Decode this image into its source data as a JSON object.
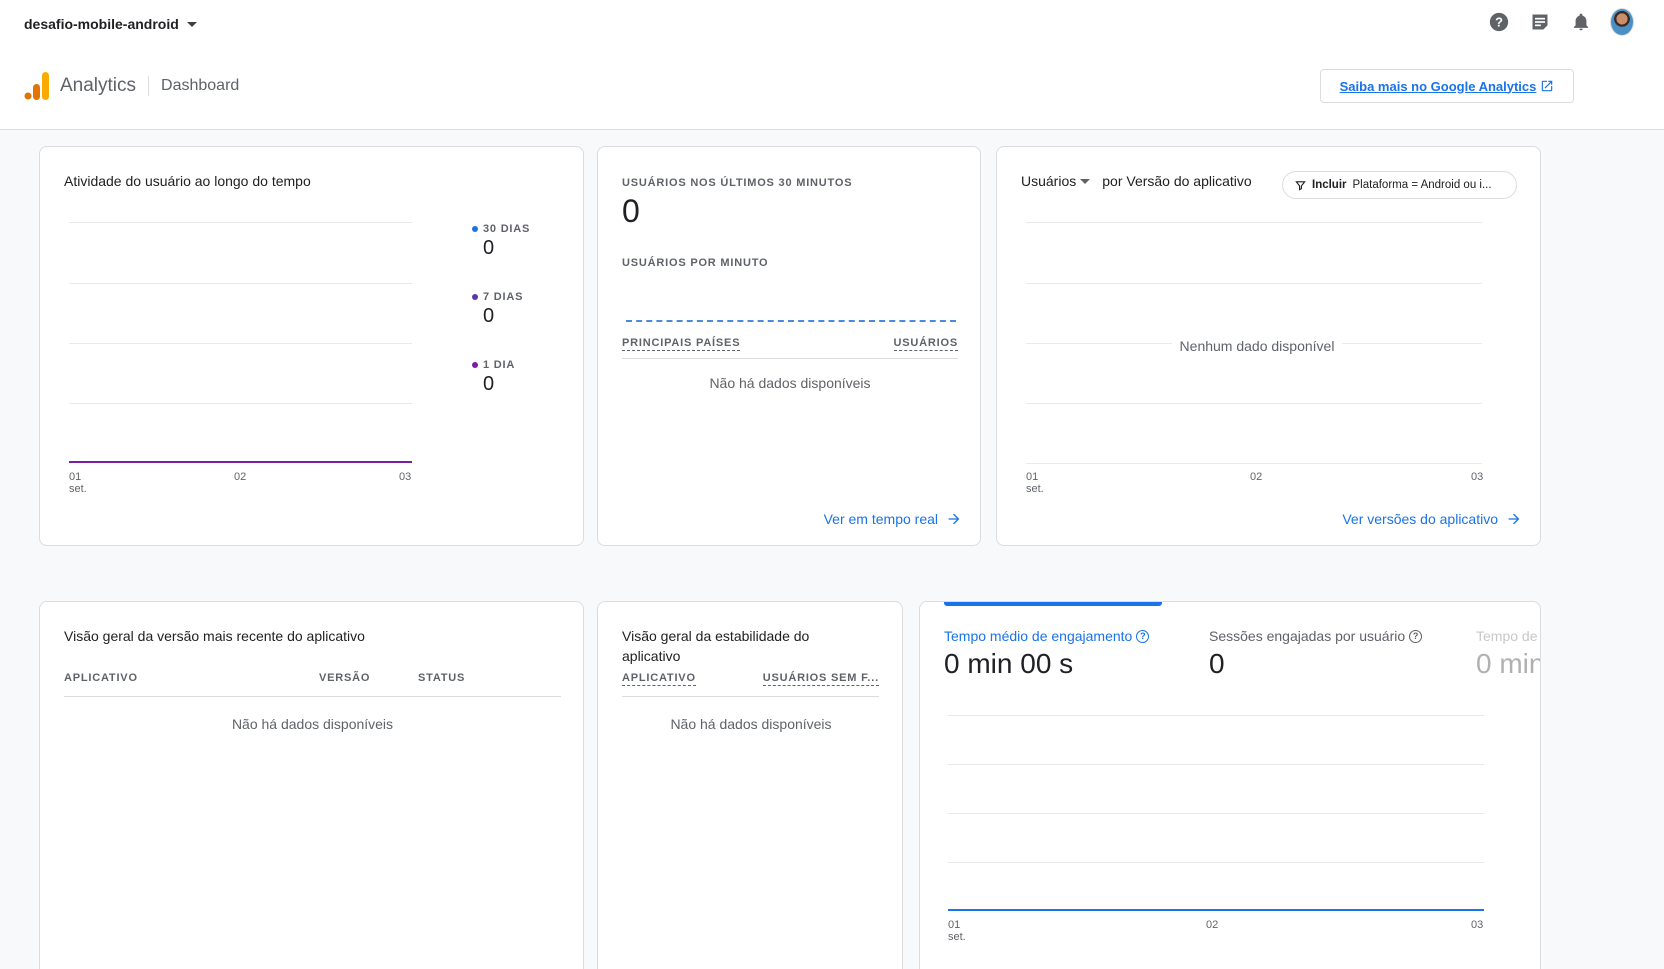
{
  "header": {
    "project_name": "desafio-mobile-android",
    "brand_name": "Analytics",
    "page_name": "Dashboard",
    "learn_more_label": "Saiba mais no Google Analytics",
    "icons": [
      "help-icon",
      "feedback-icon",
      "notifications-icon",
      "avatar"
    ]
  },
  "user_activity": {
    "title": "Atividade do usuário ao longo do tempo",
    "legend": [
      {
        "label": "30 DIAS",
        "value": "0",
        "color": "#1a73e8"
      },
      {
        "label": "7 DIAS",
        "value": "0",
        "color": "#5e35b1"
      },
      {
        "label": "1 DIA",
        "value": "0",
        "color": "#7b1fa2"
      }
    ],
    "x_ticks": [
      "01",
      "02",
      "03"
    ],
    "x_sub": "set."
  },
  "realtime": {
    "users_30min_label": "USUÁRIOS NOS ÚLTIMOS 30 MINUTOS",
    "users_30min_value": "0",
    "per_minute_label": "USUÁRIOS POR MINUTO",
    "col_countries": "PRINCIPAIS PAÍSES",
    "col_users": "USUÁRIOS",
    "no_data": "Não há dados disponíveis",
    "link": "Ver em tempo real"
  },
  "versions": {
    "metric": "Usuários",
    "title_rest": "por Versão do aplicativo",
    "filter_bold": "Incluir",
    "filter_text": "Plataforma = Android ou i...",
    "no_data": "Nenhum dado disponível",
    "x_ticks": [
      "01",
      "02",
      "03"
    ],
    "x_sub": "set.",
    "link": "Ver versões do aplicativo"
  },
  "latest_version": {
    "title": "Visão geral da versão mais recente do aplicativo",
    "col_app": "APLICATIVO",
    "col_version": "VERSÃO",
    "col_status": "STATUS",
    "no_data": "Não há dados disponíveis"
  },
  "stability": {
    "title": "Visão geral da estabilidade do aplicativo",
    "col_app": "APLICATIVO",
    "col_users": "USUÁRIOS SEM F...",
    "no_data": "Não há dados disponíveis"
  },
  "engagement": {
    "tabs": [
      {
        "label": "Tempo médio de engajamento",
        "value": "0 min 00 s"
      },
      {
        "label": "Sessões engajadas por usuário",
        "value": "0"
      },
      {
        "label": "Tempo de",
        "value": "0 min"
      }
    ],
    "x_ticks": [
      "01",
      "02",
      "03"
    ],
    "x_sub": "set."
  },
  "chart_data": [
    {
      "type": "line",
      "title": "Atividade do usuário ao longo do tempo",
      "categories": [
        "01 set.",
        "02",
        "03"
      ],
      "series": [
        {
          "name": "30 DIAS",
          "values": [
            0,
            0,
            0
          ]
        },
        {
          "name": "7 DIAS",
          "values": [
            0,
            0,
            0
          ]
        },
        {
          "name": "1 DIA",
          "values": [
            0,
            0,
            0
          ]
        }
      ]
    },
    {
      "type": "line",
      "title": "Usuários por Versão do aplicativo",
      "categories": [
        "01 set.",
        "02",
        "03"
      ],
      "series": []
    },
    {
      "type": "line",
      "title": "Tempo médio de engajamento",
      "categories": [
        "01 set.",
        "02",
        "03"
      ],
      "series": [
        {
          "values": [
            0,
            0,
            0
          ]
        }
      ]
    }
  ]
}
